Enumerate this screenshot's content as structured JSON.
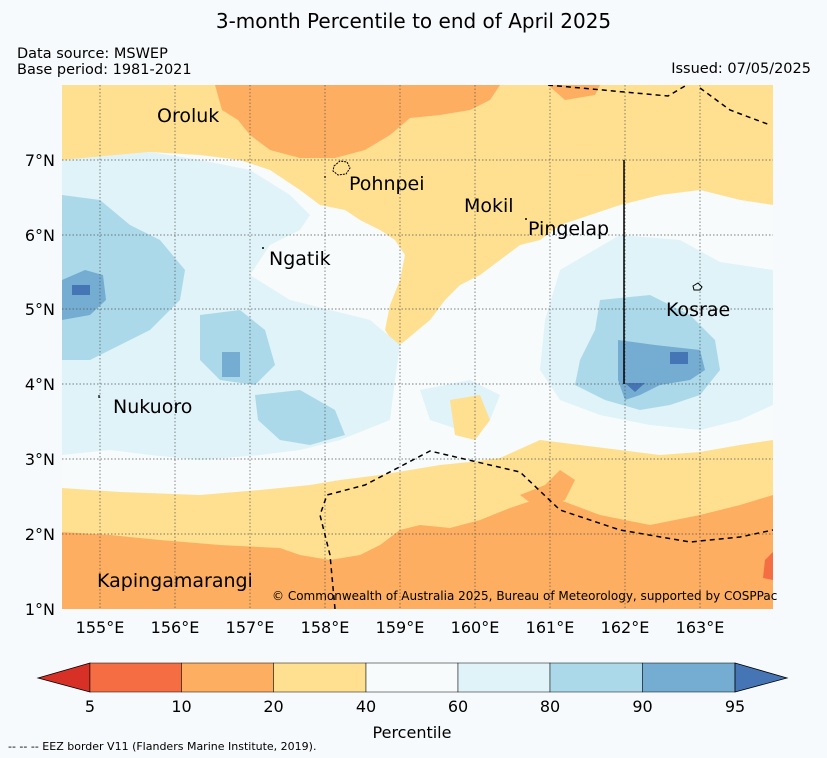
{
  "header": {
    "title": "3-month Percentile to end of April 2025",
    "data_source": "Data source: MSWEP",
    "base_period": "Base period: 1981-2021",
    "issued": "Issued: 07/05/2025"
  },
  "map": {
    "lat_labels": [
      "7°N",
      "6°N",
      "5°N",
      "4°N",
      "3°N",
      "2°N",
      "1°N"
    ],
    "lon_labels": [
      "155°E",
      "156°E",
      "157°E",
      "158°E",
      "159°E",
      "160°E",
      "161°E",
      "162°E",
      "163°E"
    ],
    "places": [
      "Oroluk",
      "Pohnpei",
      "Mokil",
      "Pingelap",
      "Ngatik",
      "Kosrae",
      "Nukuoro",
      "Kapingamarangi"
    ],
    "copyright": "© Commonwealth of Australia 2025, Bureau of Meteorology, supported by COSPPac"
  },
  "colorbar": {
    "ticks": [
      "5",
      "10",
      "20",
      "40",
      "60",
      "80",
      "90",
      "95"
    ],
    "label": "Percentile",
    "colors": [
      "#d73027",
      "#f46d43",
      "#fdae61",
      "#fee090",
      "#f7fbfc",
      "#e0f3f8",
      "#abd9e9",
      "#74add1",
      "#4575b4"
    ]
  },
  "footnote": "-- -- -- EEZ border V11 (Flanders Marine Institute, 2019)."
}
